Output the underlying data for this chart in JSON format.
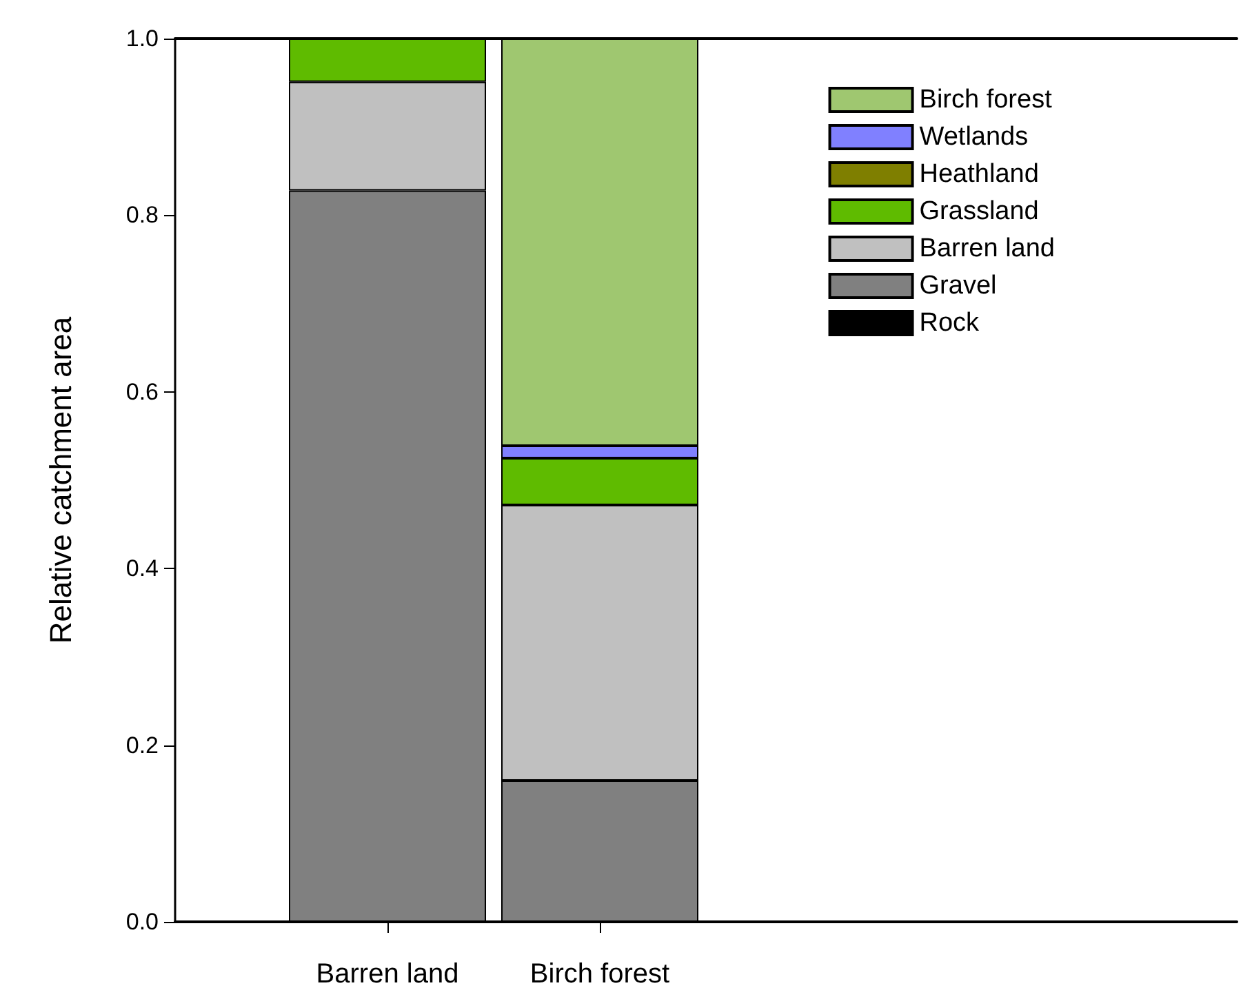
{
  "chart_data": {
    "type": "bar",
    "stacked": true,
    "ylabel": "Relative catchment area",
    "categories": [
      null,
      "Barren land",
      "Birch forest",
      null,
      null,
      null
    ],
    "series": [
      {
        "name": "Rock",
        "color": "#000000",
        "values": [
          null,
          null,
          null,
          null,
          null,
          null
        ]
      },
      {
        "name": "Gravel",
        "color": "#808080",
        "values": [
          null,
          0.828,
          0.16,
          null,
          null,
          null
        ]
      },
      {
        "name": "Barren land",
        "color": "#c0c0c0",
        "values": [
          null,
          0.123,
          0.312,
          null,
          null,
          null
        ]
      },
      {
        "name": "Grassland",
        "color": "#5fbb00",
        "values": [
          null,
          0.049,
          0.053,
          null,
          null,
          null
        ]
      },
      {
        "name": "Heathland",
        "color": "#7f7f00",
        "values": [
          null,
          null,
          null,
          null,
          null,
          null
        ]
      },
      {
        "name": "Wetlands",
        "color": "#8080ff",
        "values": [
          null,
          null,
          0.014,
          null,
          null,
          null
        ]
      },
      {
        "name": "Birch forest",
        "color": "#9fc770",
        "values": [
          null,
          null,
          0.461,
          null,
          null,
          null
        ]
      }
    ],
    "ylim": [
      0,
      1
    ],
    "yticks": [
      {
        "value": 0,
        "label": "0.0"
      },
      {
        "value": 0.2,
        "label": "0.2"
      },
      {
        "value": 0.4,
        "label": "0.4"
      },
      {
        "value": 0.6,
        "label": "0.6"
      },
      {
        "value": 0.8,
        "label": "0.8"
      },
      {
        "value": 1,
        "label": "1.0"
      }
    ],
    "grid": false,
    "legend": "top right"
  }
}
